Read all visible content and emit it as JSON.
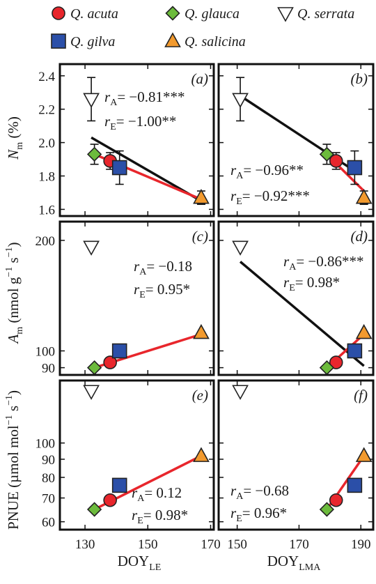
{
  "colors": {
    "acuta": "#e8262c",
    "glauca": "#6cbb3c",
    "serrata": "#ffffff",
    "gilva": "#2b4fa8",
    "salicina": "#f29a2e",
    "fit_all": "#111111",
    "fit_evergreen": "#e8262c"
  },
  "legend": [
    {
      "id": "acuta",
      "label": "Q. acuta",
      "marker": "circle"
    },
    {
      "id": "glauca",
      "label": "Q. glauca",
      "marker": "diamond"
    },
    {
      "id": "serrata",
      "label": "Q. serrata",
      "marker": "triangle-down"
    },
    {
      "id": "gilva",
      "label": "Q. gilva",
      "marker": "square"
    },
    {
      "id": "salicina",
      "label": "Q. salicina",
      "marker": "triangle-up"
    }
  ],
  "axes": {
    "x_left": {
      "label": "DOY",
      "sub": "LE",
      "ticks": [
        "130",
        "150",
        "170"
      ]
    },
    "x_right": {
      "label": "DOY",
      "sub": "LMA",
      "ticks": [
        "150",
        "170",
        "190"
      ]
    },
    "y_nm": {
      "label": "N",
      "sub": "m",
      "unit": " (%)",
      "ticks": [
        "1.6",
        "1.8",
        "2.0",
        "2.2",
        "2.4"
      ]
    },
    "y_am": {
      "label": "A",
      "sub": "m",
      "unit": " (nmol g",
      "ticks": [
        "90",
        "100",
        "200"
      ]
    },
    "y_pnue": {
      "label": "PNUE (µmol mol",
      "ticks": [
        "60",
        "70",
        "80",
        "90",
        "100"
      ]
    }
  },
  "chart_data": [
    {
      "type": "scatter",
      "panel": "(a)",
      "xlabel": "DOY_LE",
      "ylabel": "N_m (%)",
      "xlim": [
        122,
        171
      ],
      "ylim": [
        1.56,
        2.47
      ],
      "points": [
        {
          "species": "acuta",
          "x": 138,
          "y": 1.89,
          "err": 0.05
        },
        {
          "species": "glauca",
          "x": 133,
          "y": 1.93,
          "err": 0.06
        },
        {
          "species": "serrata",
          "x": 132,
          "y": 2.26,
          "err": 0.13
        },
        {
          "species": "gilva",
          "x": 141,
          "y": 1.85,
          "err": 0.1
        },
        {
          "species": "salicina",
          "x": 167,
          "y": 1.67,
          "err": 0.04
        }
      ],
      "fit_all": {
        "x": [
          132,
          167
        ],
        "y": [
          2.03,
          1.65
        ]
      },
      "fit_evergreen": {
        "x": [
          133,
          167
        ],
        "y": [
          1.93,
          1.66
        ]
      },
      "stats": {
        "rA": "= −0.81***",
        "rE": "= −1.00**"
      }
    },
    {
      "type": "scatter",
      "panel": "(b)",
      "xlabel": "DOY_LMA",
      "ylabel": "N_m (%)",
      "xlim": [
        144,
        194
      ],
      "ylim": [
        1.56,
        2.47
      ],
      "points": [
        {
          "species": "acuta",
          "x": 182,
          "y": 1.89,
          "err": 0.05
        },
        {
          "species": "glauca",
          "x": 179,
          "y": 1.93,
          "err": 0.06
        },
        {
          "species": "serrata",
          "x": 151,
          "y": 2.26,
          "err": 0.13
        },
        {
          "species": "gilva",
          "x": 188,
          "y": 1.85,
          "err": 0.1
        },
        {
          "species": "salicina",
          "x": 191,
          "y": 1.67,
          "err": 0.04
        }
      ],
      "fit_all": {
        "x": [
          151,
          188
        ],
        "y": [
          2.28,
          1.83
        ]
      },
      "fit_evergreen": {
        "x": [
          179,
          191
        ],
        "y": [
          1.93,
          1.71
        ]
      },
      "stats": {
        "rA": "= −0.96**",
        "rE": "= −0.92***"
      }
    },
    {
      "type": "scatter",
      "panel": "(c)",
      "xlabel": "DOY_LE",
      "ylabel": "A_m (nmol g^-1 s^-1)",
      "yscale": "log",
      "xlim": [
        122,
        171
      ],
      "ylim": [
        86,
        225
      ],
      "points": [
        {
          "species": "acuta",
          "x": 138,
          "y": 93
        },
        {
          "species": "glauca",
          "x": 133,
          "y": 90
        },
        {
          "species": "serrata",
          "x": 132,
          "y": 192
        },
        {
          "species": "gilva",
          "x": 141,
          "y": 100
        },
        {
          "species": "salicina",
          "x": 167,
          "y": 112
        }
      ],
      "fit_evergreen": {
        "x": [
          133,
          167
        ],
        "y": [
          90,
          111
        ]
      },
      "stats": {
        "rA": "= −0.18",
        "rE": "= 0.95*"
      }
    },
    {
      "type": "scatter",
      "panel": "(d)",
      "xlabel": "DOY_LMA",
      "ylabel": "A_m (nmol g^-1 s^-1)",
      "yscale": "log",
      "xlim": [
        144,
        194
      ],
      "ylim": [
        86,
        225
      ],
      "points": [
        {
          "species": "acuta",
          "x": 182,
          "y": 93
        },
        {
          "species": "glauca",
          "x": 179,
          "y": 90
        },
        {
          "species": "serrata",
          "x": 151,
          "y": 192
        },
        {
          "species": "gilva",
          "x": 188,
          "y": 100
        },
        {
          "species": "salicina",
          "x": 191,
          "y": 112
        }
      ],
      "fit_all": {
        "x": [
          151,
          191
        ],
        "y": [
          175,
          91
        ]
      },
      "fit_evergreen": {
        "x": [
          179,
          191
        ],
        "y": [
          90,
          111
        ]
      },
      "stats": {
        "rA": "= −0.86***",
        "rE": "= 0.98*"
      }
    },
    {
      "type": "scatter",
      "panel": "(e)",
      "xlabel": "DOY_LE",
      "ylabel": "PNUE (µmol mol^-1 s^-1)",
      "yscale": "log",
      "xlim": [
        122,
        171
      ],
      "ylim": [
        57,
        150
      ],
      "points": [
        {
          "species": "acuta",
          "x": 138,
          "y": 69
        },
        {
          "species": "glauca",
          "x": 133,
          "y": 65
        },
        {
          "species": "serrata",
          "x": 132,
          "y": 140
        },
        {
          "species": "gilva",
          "x": 141,
          "y": 76
        },
        {
          "species": "salicina",
          "x": 167,
          "y": 92
        }
      ],
      "fit_evergreen": {
        "x": [
          133,
          167
        ],
        "y": [
          65,
          92
        ]
      },
      "stats": {
        "rA": "= 0.12",
        "rE": "= 0.98*"
      }
    },
    {
      "type": "scatter",
      "panel": "(f)",
      "xlabel": "DOY_LMA",
      "ylabel": "PNUE (µmol mol^-1 s^-1)",
      "yscale": "log",
      "xlim": [
        144,
        194
      ],
      "ylim": [
        57,
        150
      ],
      "points": [
        {
          "species": "acuta",
          "x": 182,
          "y": 69
        },
        {
          "species": "glauca",
          "x": 179,
          "y": 65
        },
        {
          "species": "serrata",
          "x": 151,
          "y": 140
        },
        {
          "species": "gilva",
          "x": 188,
          "y": 76
        },
        {
          "species": "salicina",
          "x": 191,
          "y": 92
        }
      ],
      "fit_evergreen": {
        "x": [
          179,
          191
        ],
        "y": [
          65,
          92
        ]
      },
      "stats": {
        "rA": "= −0.68",
        "rE": "= 0.96*"
      }
    }
  ]
}
